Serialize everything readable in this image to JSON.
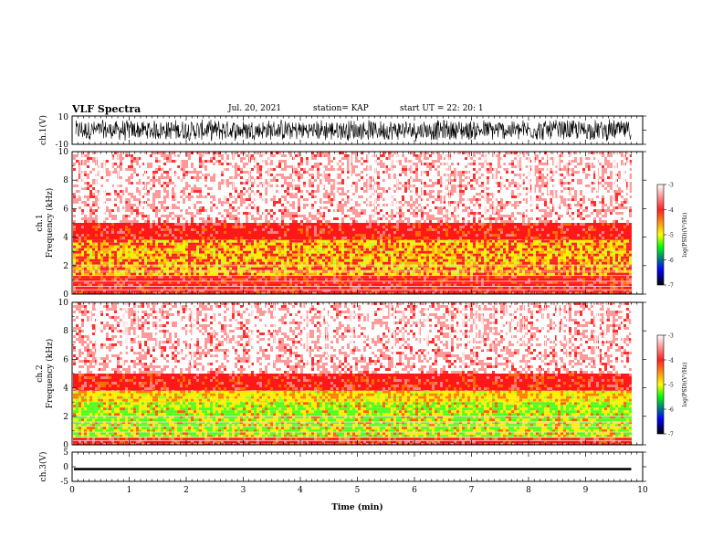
{
  "header": {
    "title": "VLF Spectra",
    "date": "Jul. 20, 2021",
    "station": "station= KAP",
    "start": "start UT = 22: 20: 1"
  },
  "colors": {
    "background": "#ffffff",
    "trace": "#000000",
    "colormap": [
      "#ffffff",
      "#ff0000",
      "#ffff00",
      "#00ff00",
      "#0000ff",
      "#000000"
    ]
  },
  "chart_data": [
    {
      "type": "line",
      "name": "ch1-waveform",
      "ylabel": "ch.1(V)",
      "ylim": [
        -10,
        10
      ],
      "yticks": [
        "10",
        "-10"
      ],
      "description_values": "dense noise between about -8 and 8 V over 0-9.8 min"
    },
    {
      "type": "heatmap",
      "name": "ch1-spectrogram",
      "ylabel": "ch.1\nFrequency (kHz)",
      "ylabel_lines": [
        "ch.1",
        "Frequency (kHz)"
      ],
      "ylim": [
        0,
        10
      ],
      "yticks": [
        "0",
        "2",
        "4",
        "6",
        "8",
        "10"
      ],
      "xlim": [
        0,
        10
      ],
      "data_extent_min": 9.8,
      "bands_khz": [
        {
          "from": 0.0,
          "to": 1.3,
          "level": "red"
        },
        {
          "from": 1.3,
          "to": 3.8,
          "level": "yellow-red"
        },
        {
          "from": 3.8,
          "to": 5.0,
          "level": "red"
        },
        {
          "from": 5.0,
          "to": 10.0,
          "level": "sparse-red"
        }
      ],
      "colorbar": {
        "label": "log(PSD)(V²/Hz)",
        "ticks": [
          "-3",
          "-4",
          "-5",
          "-6",
          "-7"
        ],
        "range": [
          -7,
          -3
        ]
      }
    },
    {
      "type": "heatmap",
      "name": "ch2-spectrogram",
      "ylabel": "ch.2\nFrequency (kHz)",
      "ylabel_lines": [
        "ch.2",
        "Frequency (kHz)"
      ],
      "ylim": [
        0,
        10
      ],
      "yticks": [
        "0",
        "2",
        "4",
        "6",
        "8",
        "10"
      ],
      "xlim": [
        0,
        10
      ],
      "data_extent_min": 9.8,
      "bands_khz": [
        {
          "from": 0.0,
          "to": 0.5,
          "level": "red"
        },
        {
          "from": 0.5,
          "to": 3.0,
          "level": "green-yellow"
        },
        {
          "from": 3.0,
          "to": 3.8,
          "level": "yellow"
        },
        {
          "from": 3.8,
          "to": 5.0,
          "level": "red"
        },
        {
          "from": 5.0,
          "to": 10.0,
          "level": "sparse-red"
        }
      ],
      "colorbar": {
        "label": "log(PSD)(V²/Hz)",
        "ticks": [
          "-3",
          "-4",
          "-5",
          "-6",
          "-7"
        ],
        "range": [
          -7,
          -3
        ]
      }
    },
    {
      "type": "line",
      "name": "ch3-waveform",
      "ylabel": "ch.3(V)",
      "ylim": [
        -5,
        5
      ],
      "yticks": [
        "5",
        "0",
        "-5"
      ],
      "level_v": [
        -1.2,
        -0.4
      ],
      "xlabel": "Time (min)",
      "xlim": [
        0,
        10
      ],
      "xticks": [
        "0",
        "1",
        "2",
        "3",
        "4",
        "5",
        "6",
        "7",
        "8",
        "9",
        "10"
      ]
    }
  ]
}
